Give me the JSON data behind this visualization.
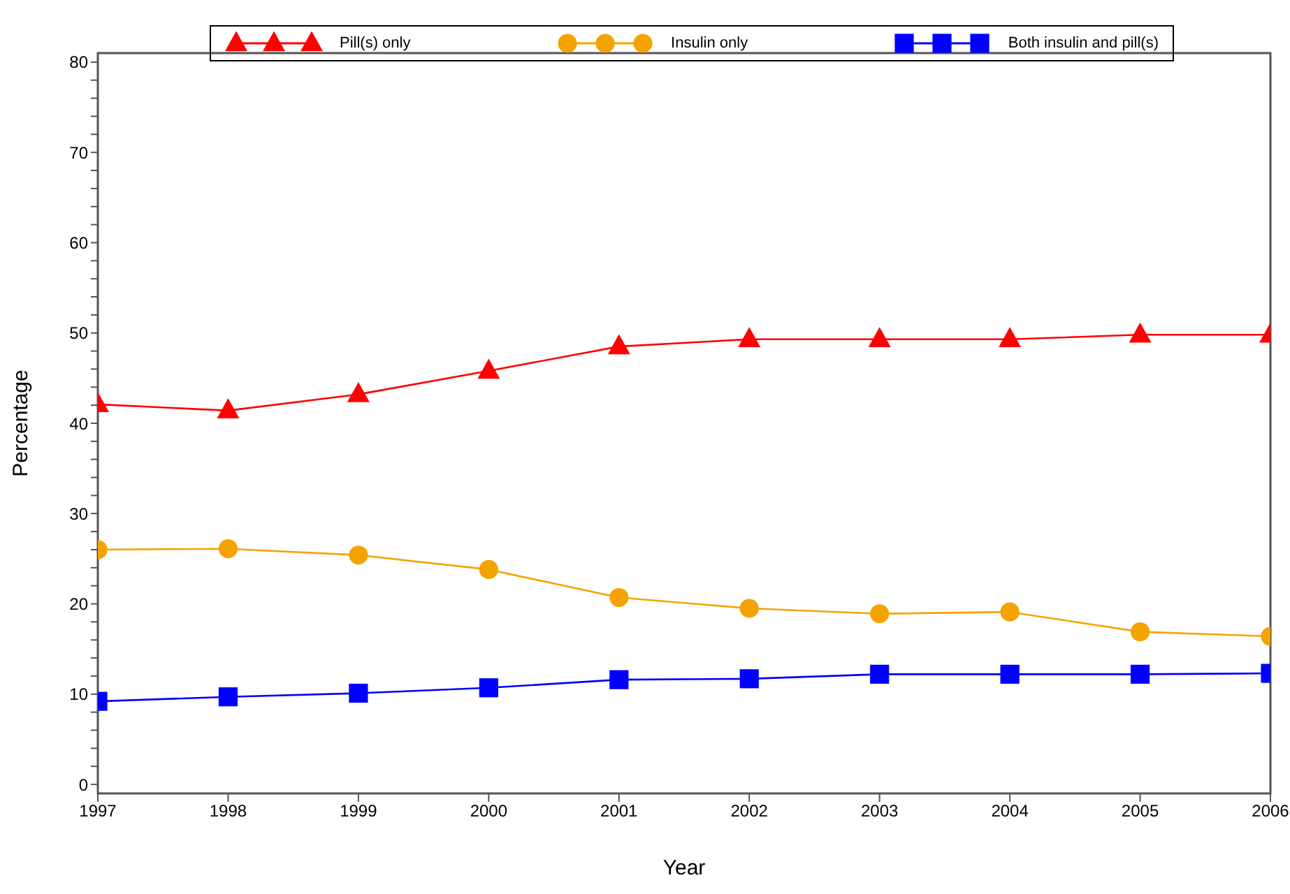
{
  "chart_data": {
    "type": "line",
    "xlabel": "Year",
    "ylabel": "Percentage",
    "x": [
      1997,
      1998,
      1999,
      2000,
      2001,
      2002,
      2003,
      2004,
      2005,
      2006
    ],
    "series": [
      {
        "name": "Pill(s) only",
        "color": "#ff0000",
        "marker": "triangle",
        "values": [
          42.1,
          41.4,
          43.2,
          45.8,
          48.5,
          49.3,
          49.3,
          49.3,
          49.8,
          49.8
        ]
      },
      {
        "name": "Insulin only",
        "color": "#f5a300",
        "marker": "circle",
        "values": [
          26.0,
          26.1,
          25.4,
          23.8,
          20.7,
          19.5,
          18.9,
          19.1,
          16.9,
          16.4
        ]
      },
      {
        "name": "Both insulin and pill(s)",
        "color": "#0000ff",
        "marker": "square",
        "values": [
          9.2,
          9.7,
          10.1,
          10.7,
          11.6,
          11.7,
          12.2,
          12.2,
          12.2,
          12.3
        ]
      }
    ],
    "xlim": [
      1997,
      2006
    ],
    "xticks": [
      1997,
      1998,
      1999,
      2000,
      2001,
      2002,
      2003,
      2004,
      2005,
      2006
    ],
    "ylim": [
      -1,
      81
    ],
    "yticks": [
      0,
      {
        "value": 2,
        "label": null
      },
      {
        "value": 4,
        "label": null
      },
      {
        "value": 6,
        "label": null
      },
      {
        "value": 8,
        "label": null
      },
      10,
      {
        "value": 12,
        "label": null
      },
      {
        "value": 14,
        "label": null
      },
      {
        "value": 16,
        "label": null
      },
      {
        "value": 18,
        "label": null
      },
      20,
      {
        "value": 22,
        "label": null
      },
      {
        "value": 24,
        "label": null
      },
      {
        "value": 26,
        "label": null
      },
      {
        "value": 28,
        "label": null
      },
      30,
      {
        "value": 32,
        "label": null
      },
      {
        "value": 34,
        "label": null
      },
      {
        "value": 36,
        "label": null
      },
      {
        "value": 38,
        "label": null
      },
      40,
      {
        "value": 42,
        "label": null
      },
      {
        "value": 44,
        "label": null
      },
      {
        "value": 46,
        "label": null
      },
      {
        "value": 48,
        "label": null
      },
      50,
      {
        "value": 52,
        "label": null
      },
      {
        "value": 54,
        "label": null
      },
      {
        "value": 56,
        "label": null
      },
      {
        "value": 58,
        "label": null
      },
      60,
      {
        "value": 62,
        "label": null
      },
      {
        "value": 64,
        "label": null
      },
      {
        "value": 66,
        "label": null
      },
      {
        "value": 68,
        "label": null
      },
      70,
      {
        "value": 72,
        "label": null
      },
      {
        "value": 74,
        "label": null
      },
      {
        "value": 76,
        "label": null
      },
      {
        "value": 78,
        "label": null
      },
      80
    ],
    "grid": false,
    "legend": "top",
    "line_style": "solid"
  }
}
